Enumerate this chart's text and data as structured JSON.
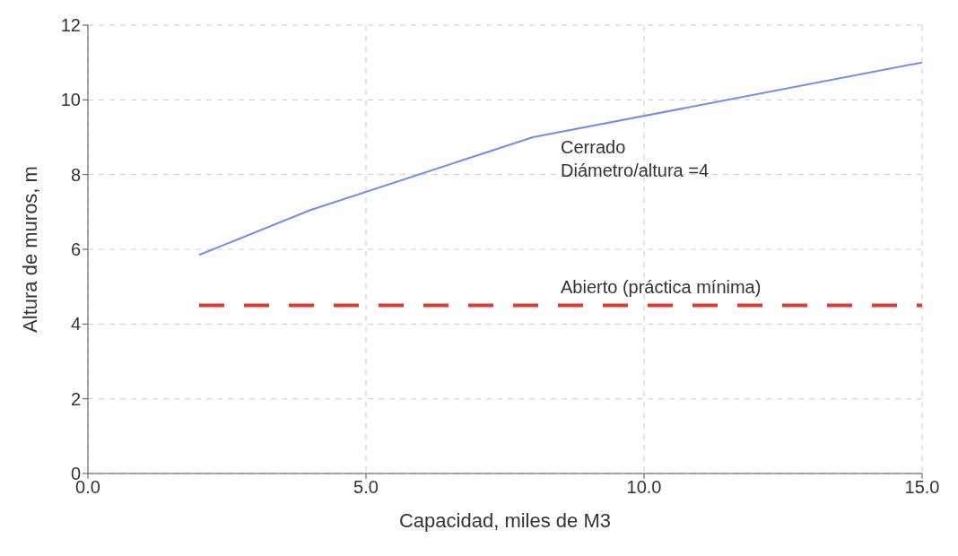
{
  "chart_data": {
    "type": "line",
    "xlabel": "Capacidad, miles de M3",
    "ylabel": "Altura de muros, m",
    "series": [
      {
        "name": "Cerrado",
        "color": "#6f8ff0",
        "x": [
          2,
          4,
          8,
          15
        ],
        "values": [
          5.85,
          7.05,
          9.0,
          11.0
        ],
        "line_style": "solid"
      },
      {
        "name": "Abierto (práctica mínima)",
        "color": "#e03a2a",
        "x": [
          2,
          15
        ],
        "values": [
          4.5,
          4.5
        ],
        "line_style": "dashed"
      }
    ],
    "annotations": [
      "Diámetro/altura =4"
    ],
    "xlim": [
      0,
      15
    ],
    "xticks": [
      {
        "value": 0,
        "label": "0.0"
      },
      {
        "value": 5,
        "label": "5.0"
      },
      {
        "value": 10,
        "label": "10.0"
      },
      {
        "value": 15,
        "label": "15.0"
      }
    ],
    "ylim": [
      0,
      12
    ],
    "yticks": [
      0,
      2,
      4,
      6,
      8,
      10,
      12
    ],
    "grid": true,
    "marker": "none"
  }
}
